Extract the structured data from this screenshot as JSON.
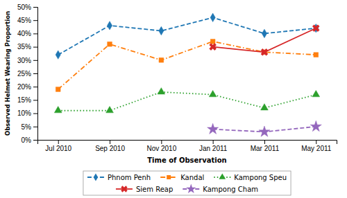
{
  "chart_data": {
    "type": "line",
    "x_label": "Time of Observation",
    "y_label": "Observed Helmet Wearing Proportion",
    "categories": [
      "Jul 2010",
      "Sep 2010",
      "Nov 2010",
      "Jan 2011",
      "Mar 2011",
      "May 2011"
    ],
    "series": [
      {
        "name": "Phnom Penh",
        "values": [
          0.32,
          0.43,
          0.41,
          0.46,
          0.4,
          0.42
        ],
        "marker": "diamond",
        "line_style": "dashed"
      },
      {
        "name": "Kandal",
        "values": [
          0.19,
          0.36,
          0.3,
          0.37,
          0.33,
          0.32
        ],
        "marker": "square",
        "line_style": "dashdot"
      },
      {
        "name": "Kampong Speu",
        "values": [
          0.11,
          0.11,
          0.18,
          0.17,
          0.12,
          0.17
        ],
        "marker": "triangle",
        "line_style": "dotted"
      },
      {
        "name": "Siem Reap",
        "values": [
          null,
          null,
          null,
          0.35,
          0.33,
          0.42
        ],
        "marker": "x",
        "line_style": "solid"
      },
      {
        "name": "Kampong Cham",
        "values": [
          null,
          null,
          null,
          0.04,
          0.03,
          0.05
        ],
        "marker": "star",
        "line_style": "dashed"
      }
    ],
    "ylim": [
      0.0,
      0.5
    ],
    "yticks": [
      {
        "value": 0.0,
        "label": "0%"
      },
      {
        "value": 0.05,
        "label": "5%"
      },
      {
        "value": 0.1,
        "label": "10%"
      },
      {
        "value": 0.15,
        "label": "15%"
      },
      {
        "value": 0.2,
        "label": "20%"
      },
      {
        "value": 0.25,
        "label": "25%"
      },
      {
        "value": 0.3,
        "label": "30%"
      },
      {
        "value": 0.35,
        "label": "35%"
      },
      {
        "value": 0.4,
        "label": "40%"
      },
      {
        "value": 0.45,
        "label": "45%"
      },
      {
        "value": 0.5,
        "label": "50%"
      }
    ],
    "grid": false,
    "legend": "bottom"
  }
}
